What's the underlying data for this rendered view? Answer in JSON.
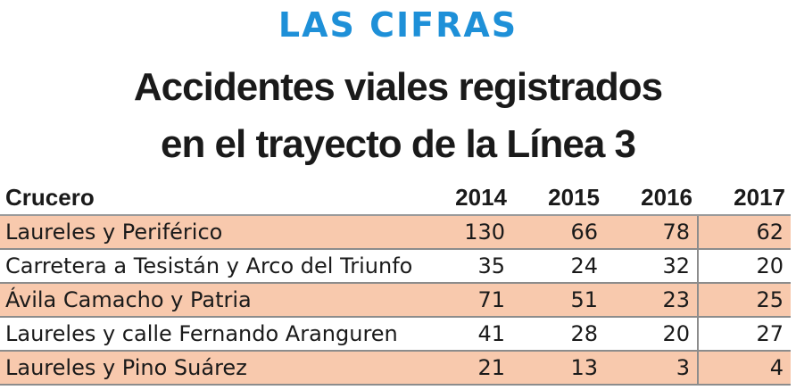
{
  "header": {
    "kicker": "LAS CIFRAS",
    "title_line1": "Accidentes viales registrados",
    "title_line2": "en el trayecto de la Línea 3"
  },
  "colors": {
    "kicker": "#1e90d8",
    "row_shade": "#f8c9ad",
    "rule": "#8c8c8c",
    "text": "#1a1a1a"
  },
  "chart_data": {
    "type": "table",
    "columns": [
      "Crucero",
      "2014",
      "2015",
      "2016",
      "2017"
    ],
    "rows": [
      {
        "crucero": "Laureles y Periférico",
        "values": [
          "130",
          "66",
          "78",
          "62"
        ],
        "shaded": true
      },
      {
        "crucero": "Carretera a Tesistán y Arco del Triunfo",
        "values": [
          "35",
          "24",
          "32",
          "20"
        ],
        "shaded": false
      },
      {
        "crucero": "Ávila Camacho y Patria",
        "values": [
          "71",
          "51",
          "23",
          "25"
        ],
        "shaded": true
      },
      {
        "crucero": "Laureles y calle Fernando Aranguren",
        "values": [
          "41",
          "28",
          "20",
          "27"
        ],
        "shaded": false
      },
      {
        "crucero": "Laureles y Pino Suárez",
        "values": [
          "21",
          "13",
          "3",
          "4"
        ],
        "shaded": true
      }
    ]
  }
}
